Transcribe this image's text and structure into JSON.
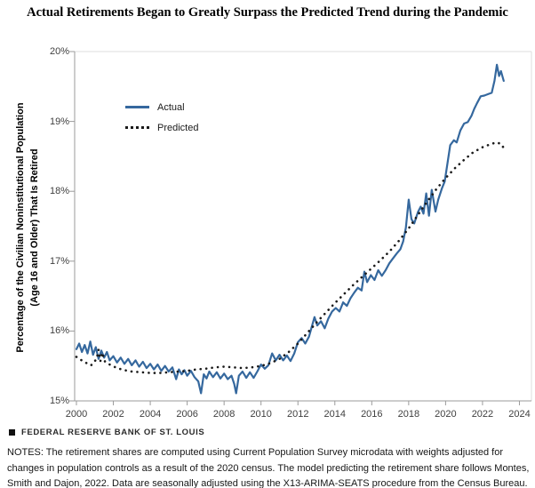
{
  "title": "Actual Retirements Began to Greatly Surpass the Predicted Trend during the Pandemic",
  "legend": {
    "actual_label": "Actual",
    "predicted_label": "Predicted"
  },
  "footer": {
    "brand": "FEDERAL RESERVE BANK OF ST. LOUIS",
    "notes": "NOTES: The retirement shares are computed using Current Population Survey microdata with weights adjusted for changes in population controls as a result of the 2020 census. The model predicting the retirement share follows Montes, Smith and Dajon, 2022. Data are seasonally adjusted using the X13-ARIMA-SEATS procedure from the Census Bureau."
  },
  "colors": {
    "actual": "#35689E",
    "predicted": "#1a1a1a",
    "axis_dark": "#9b9b9b",
    "axis_light": "#dcdcdc"
  },
  "chart_data": {
    "type": "line",
    "title": "Actual Retirements Began to Greatly Surpass the Predicted Trend during the Pandemic",
    "ylabel": "Percentage of the Civilian Noninstitutional Population\n(Age 16 and Older) That Is Retired",
    "xlabel": "",
    "ylim": [
      15,
      20
    ],
    "xlim": [
      2000,
      2024.7
    ],
    "grid": false,
    "legend_position": "top-left-inside",
    "y_ticks": [
      "20%",
      "19%",
      "18%",
      "17%",
      "16%",
      "15%"
    ],
    "y_tick_values": [
      20,
      19,
      18,
      17,
      16,
      15
    ],
    "x_ticks": [
      2000,
      2002,
      2004,
      2006,
      2008,
      2010,
      2012,
      2014,
      2016,
      2018,
      2020,
      2022,
      2024
    ],
    "series": [
      {
        "name": "Actual",
        "style": "solid",
        "color": "#35689E",
        "points": [
          [
            2000.0,
            15.74
          ],
          [
            2000.15,
            15.82
          ],
          [
            2000.3,
            15.7
          ],
          [
            2000.45,
            15.8
          ],
          [
            2000.6,
            15.68
          ],
          [
            2000.75,
            15.85
          ],
          [
            2000.9,
            15.66
          ],
          [
            2001.05,
            15.77
          ],
          [
            2001.2,
            15.6
          ],
          [
            2001.35,
            15.72
          ],
          [
            2001.5,
            15.62
          ],
          [
            2001.65,
            15.7
          ],
          [
            2001.8,
            15.58
          ],
          [
            2002.0,
            15.64
          ],
          [
            2002.2,
            15.55
          ],
          [
            2002.4,
            15.62
          ],
          [
            2002.6,
            15.53
          ],
          [
            2002.8,
            15.6
          ],
          [
            2003.0,
            15.51
          ],
          [
            2003.2,
            15.58
          ],
          [
            2003.4,
            15.49
          ],
          [
            2003.6,
            15.56
          ],
          [
            2003.8,
            15.47
          ],
          [
            2004.0,
            15.53
          ],
          [
            2004.2,
            15.45
          ],
          [
            2004.4,
            15.52
          ],
          [
            2004.6,
            15.43
          ],
          [
            2004.8,
            15.5
          ],
          [
            2005.0,
            15.42
          ],
          [
            2005.2,
            15.48
          ],
          [
            2005.4,
            15.31
          ],
          [
            2005.55,
            15.45
          ],
          [
            2005.7,
            15.38
          ],
          [
            2005.85,
            15.44
          ],
          [
            2006.0,
            15.36
          ],
          [
            2006.2,
            15.43
          ],
          [
            2006.4,
            15.34
          ],
          [
            2006.6,
            15.28
          ],
          [
            2006.75,
            15.11
          ],
          [
            2006.9,
            15.38
          ],
          [
            2007.05,
            15.32
          ],
          [
            2007.2,
            15.42
          ],
          [
            2007.4,
            15.34
          ],
          [
            2007.6,
            15.41
          ],
          [
            2007.8,
            15.32
          ],
          [
            2008.0,
            15.39
          ],
          [
            2008.2,
            15.31
          ],
          [
            2008.4,
            15.36
          ],
          [
            2008.55,
            15.24
          ],
          [
            2008.65,
            15.11
          ],
          [
            2008.8,
            15.36
          ],
          [
            2009.0,
            15.42
          ],
          [
            2009.2,
            15.33
          ],
          [
            2009.4,
            15.41
          ],
          [
            2009.6,
            15.33
          ],
          [
            2009.8,
            15.42
          ],
          [
            2010.0,
            15.52
          ],
          [
            2010.2,
            15.46
          ],
          [
            2010.4,
            15.51
          ],
          [
            2010.6,
            15.68
          ],
          [
            2010.8,
            15.58
          ],
          [
            2011.0,
            15.66
          ],
          [
            2011.2,
            15.58
          ],
          [
            2011.4,
            15.65
          ],
          [
            2011.6,
            15.57
          ],
          [
            2011.8,
            15.68
          ],
          [
            2012.0,
            15.84
          ],
          [
            2012.2,
            15.9
          ],
          [
            2012.4,
            15.82
          ],
          [
            2012.6,
            15.92
          ],
          [
            2012.9,
            16.2
          ],
          [
            2013.05,
            16.08
          ],
          [
            2013.25,
            16.14
          ],
          [
            2013.45,
            16.04
          ],
          [
            2013.65,
            16.18
          ],
          [
            2013.85,
            16.28
          ],
          [
            2014.05,
            16.33
          ],
          [
            2014.25,
            16.28
          ],
          [
            2014.45,
            16.41
          ],
          [
            2014.65,
            16.36
          ],
          [
            2014.85,
            16.47
          ],
          [
            2015.05,
            16.55
          ],
          [
            2015.25,
            16.62
          ],
          [
            2015.45,
            16.58
          ],
          [
            2015.6,
            16.85
          ],
          [
            2015.75,
            16.7
          ],
          [
            2015.95,
            16.8
          ],
          [
            2016.15,
            16.73
          ],
          [
            2016.35,
            16.87
          ],
          [
            2016.55,
            16.79
          ],
          [
            2016.75,
            16.87
          ],
          [
            2016.95,
            16.97
          ],
          [
            2017.15,
            17.04
          ],
          [
            2017.35,
            17.11
          ],
          [
            2017.55,
            17.17
          ],
          [
            2017.7,
            17.28
          ],
          [
            2017.85,
            17.48
          ],
          [
            2018.0,
            17.88
          ],
          [
            2018.15,
            17.6
          ],
          [
            2018.3,
            17.54
          ],
          [
            2018.5,
            17.7
          ],
          [
            2018.65,
            17.78
          ],
          [
            2018.8,
            17.68
          ],
          [
            2018.95,
            17.97
          ],
          [
            2019.1,
            17.65
          ],
          [
            2019.25,
            18.02
          ],
          [
            2019.45,
            17.71
          ],
          [
            2019.6,
            17.88
          ],
          [
            2019.8,
            18.04
          ],
          [
            2019.95,
            18.14
          ],
          [
            2020.1,
            18.4
          ],
          [
            2020.25,
            18.66
          ],
          [
            2020.45,
            18.73
          ],
          [
            2020.6,
            18.7
          ],
          [
            2020.8,
            18.87
          ],
          [
            2021.0,
            18.97
          ],
          [
            2021.2,
            18.99
          ],
          [
            2021.4,
            19.08
          ],
          [
            2021.55,
            19.18
          ],
          [
            2021.7,
            19.26
          ],
          [
            2021.9,
            19.36
          ],
          [
            2022.1,
            19.37
          ],
          [
            2022.3,
            19.39
          ],
          [
            2022.5,
            19.41
          ],
          [
            2022.65,
            19.58
          ],
          [
            2022.78,
            19.81
          ],
          [
            2022.9,
            19.65
          ],
          [
            2023.0,
            19.72
          ],
          [
            2023.15,
            19.58
          ]
        ]
      },
      {
        "name": "Predicted",
        "style": "dotted",
        "color": "#1a1a1a",
        "points": [
          [
            2000.0,
            15.63
          ],
          [
            2000.4,
            15.56
          ],
          [
            2000.8,
            15.51
          ],
          [
            2001.1,
            15.6
          ],
          [
            2001.2,
            15.73
          ],
          [
            2001.3,
            15.57
          ],
          [
            2001.4,
            15.69
          ],
          [
            2001.55,
            15.56
          ],
          [
            2001.8,
            15.52
          ],
          [
            2002.2,
            15.47
          ],
          [
            2002.6,
            15.44
          ],
          [
            2003.0,
            15.42
          ],
          [
            2003.5,
            15.41
          ],
          [
            2004.0,
            15.4
          ],
          [
            2004.5,
            15.4
          ],
          [
            2005.0,
            15.41
          ],
          [
            2005.5,
            15.42
          ],
          [
            2006.0,
            15.43
          ],
          [
            2006.5,
            15.45
          ],
          [
            2007.0,
            15.46
          ],
          [
            2007.5,
            15.48
          ],
          [
            2008.0,
            15.49
          ],
          [
            2008.5,
            15.48
          ],
          [
            2009.0,
            15.47
          ],
          [
            2009.5,
            15.48
          ],
          [
            2010.0,
            15.5
          ],
          [
            2010.5,
            15.54
          ],
          [
            2011.0,
            15.6
          ],
          [
            2011.5,
            15.7
          ],
          [
            2012.0,
            15.82
          ],
          [
            2012.5,
            15.97
          ],
          [
            2013.0,
            16.12
          ],
          [
            2013.5,
            16.26
          ],
          [
            2014.0,
            16.4
          ],
          [
            2014.5,
            16.53
          ],
          [
            2015.0,
            16.66
          ],
          [
            2015.5,
            16.78
          ],
          [
            2016.0,
            16.9
          ],
          [
            2016.5,
            17.02
          ],
          [
            2017.0,
            17.15
          ],
          [
            2017.5,
            17.3
          ],
          [
            2018.0,
            17.47
          ],
          [
            2018.5,
            17.66
          ],
          [
            2019.0,
            17.85
          ],
          [
            2019.5,
            18.03
          ],
          [
            2020.0,
            18.19
          ],
          [
            2020.5,
            18.33
          ],
          [
            2021.0,
            18.45
          ],
          [
            2021.5,
            18.56
          ],
          [
            2022.0,
            18.63
          ],
          [
            2022.4,
            18.67
          ],
          [
            2022.75,
            18.7
          ],
          [
            2023.0,
            18.68
          ],
          [
            2023.15,
            18.62
          ]
        ]
      }
    ]
  }
}
